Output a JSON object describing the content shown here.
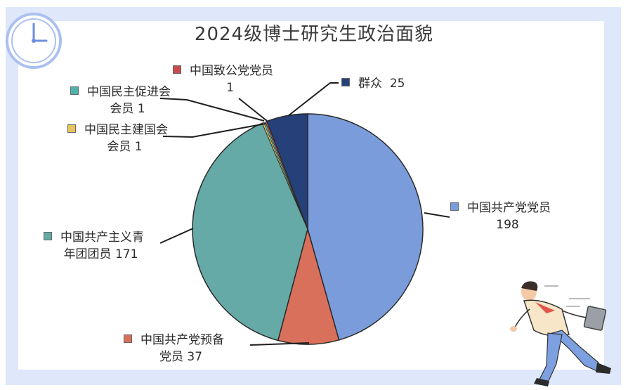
{
  "chart_data": {
    "type": "pie",
    "title": "2024级博士研究生政治面貌",
    "slices": [
      {
        "label": "中国共产党党员",
        "value": 198,
        "color": "#7a9cdb"
      },
      {
        "label": "中国共产党预备党员",
        "value": 37,
        "color": "#d9705b"
      },
      {
        "label": "中国共产主义青年团团员",
        "value": 171,
        "color": "#65aaa6"
      },
      {
        "label": "中国民主建国会会员",
        "value": 1,
        "color": "#e8c35a"
      },
      {
        "label": "中国民主促进会会员",
        "value": 1,
        "color": "#4cb3ad"
      },
      {
        "label": "中国致公党党员",
        "value": 1,
        "color": "#c94b4b"
      },
      {
        "label": "群众",
        "value": 25,
        "color": "#26407a"
      }
    ]
  },
  "labels": {
    "s0": {
      "l1": "中国共产党党员",
      "l2": "198"
    },
    "s1": {
      "l1": "中国共产党预备",
      "l2": "党员 37"
    },
    "s2": {
      "l1": "中国共产主义青",
      "l2": "年团团员 171"
    },
    "s3": {
      "l1": "中国民主建国会",
      "l2": "会员 1"
    },
    "s4": {
      "l1": "中国民主促进会",
      "l2": "会员 1"
    },
    "s5": {
      "l1": "中国致公党党员",
      "l2": "1"
    },
    "s6": {
      "l1": "群众",
      "l2": "25"
    }
  }
}
